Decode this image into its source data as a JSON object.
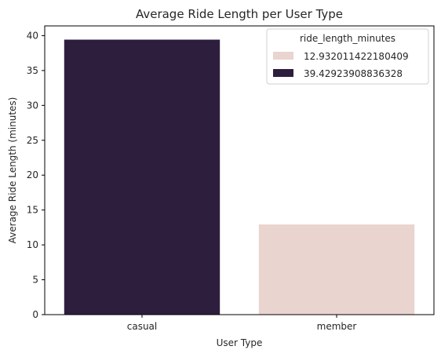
{
  "chart_data": {
    "type": "bar",
    "title": "Average Ride Length per User Type",
    "xlabel": "User Type",
    "ylabel": "Average Ride Length (minutes)",
    "categories": [
      "casual",
      "member"
    ],
    "values": [
      39.42923908836328,
      12.932011422180409
    ],
    "bar_colors": [
      "#2d1e3e",
      "#ead4cf"
    ],
    "ylim": [
      0,
      41.4
    ],
    "yticks": [
      0,
      5,
      10,
      15,
      20,
      25,
      30,
      35,
      40
    ],
    "grid": false,
    "legend": {
      "title": "ride_length_minutes",
      "placement": "top-right",
      "entries": [
        {
          "label": "12.932011422180409",
          "color": "#ead4cf"
        },
        {
          "label": "39.42923908836328",
          "color": "#2d1e3e"
        }
      ]
    }
  }
}
